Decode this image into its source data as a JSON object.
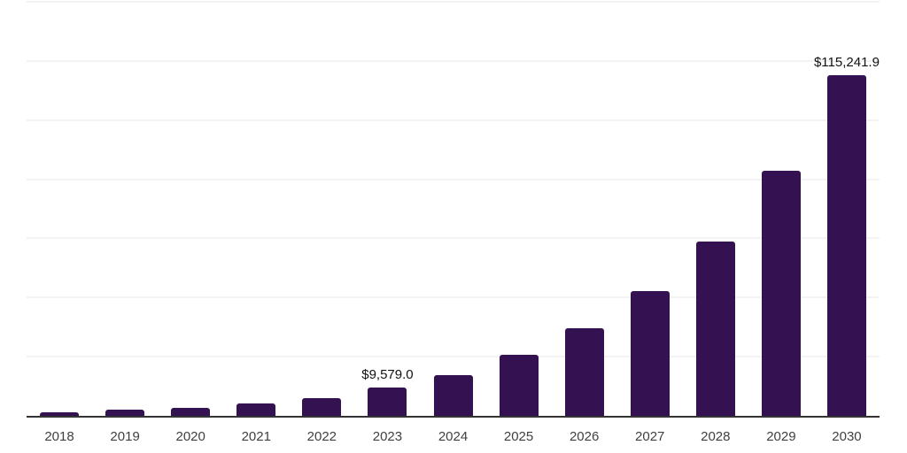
{
  "chart_data": {
    "type": "bar",
    "title": "",
    "xlabel": "",
    "ylabel": "",
    "categories": [
      "2018",
      "2019",
      "2020",
      "2021",
      "2022",
      "2023",
      "2024",
      "2025",
      "2026",
      "2027",
      "2028",
      "2029",
      "2030"
    ],
    "values": [
      1200,
      2000,
      2800,
      4300,
      6100,
      9579.0,
      13900,
      20700,
      29700,
      42100,
      59000,
      82800,
      115241.9
    ],
    "labeled_points": [
      {
        "category": "2023",
        "label": "$9,579.0"
      },
      {
        "category": "2030",
        "label": "$115,241.9"
      }
    ],
    "ylim": [
      0,
      140000
    ],
    "gridline_step": 20000,
    "grid": "horizontal-only",
    "legend_position": "none",
    "y_axis_tick_labels_visible": false,
    "colors": {
      "bar": "#341150",
      "gridline": "#f3f3f4",
      "axis_line": "#333333",
      "x_label_text": "#404040",
      "value_label_text": "#111111",
      "background": "#ffffff"
    }
  }
}
